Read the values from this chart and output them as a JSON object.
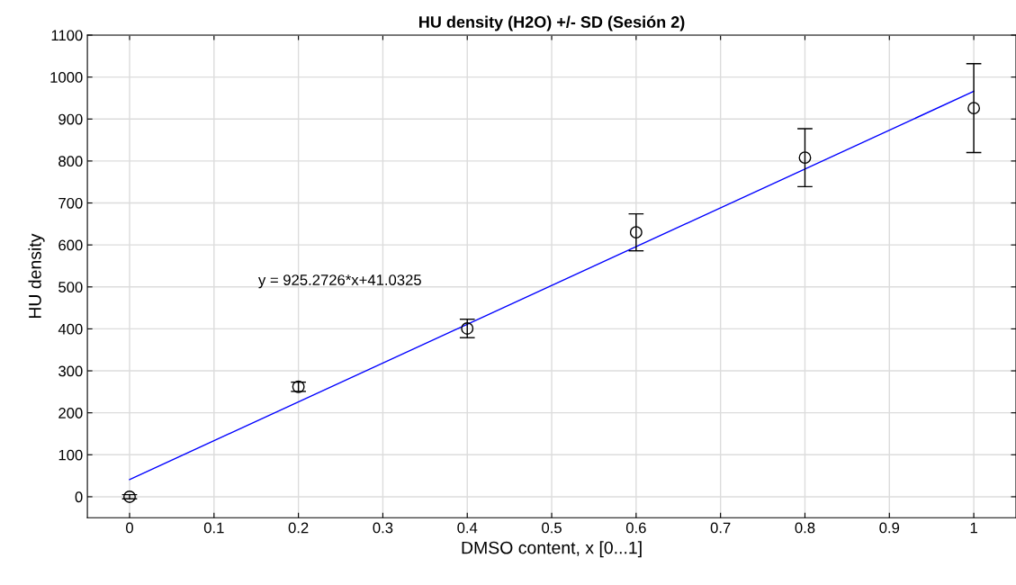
{
  "chart_data": {
    "type": "scatter",
    "title": "HU density (H2O) +/- SD (Sesión 2)",
    "xlabel": "DMSO content, x [0...1]",
    "ylabel": "HU density",
    "series": [
      {
        "color": "#000000",
        "marker": "circle",
        "x": [
          0,
          0.2,
          0.4,
          0.6,
          0.8,
          1
        ],
        "values": [
          0,
          262,
          401,
          630,
          808,
          926
        ],
        "errors": [
          5,
          11,
          22,
          44,
          69,
          106
        ]
      },
      {
        "type": "line",
        "color": "#0000ff",
        "marker": "none",
        "x": [
          0,
          1
        ],
        "values": [
          41,
          966
        ]
      }
    ],
    "annotations": [
      "y = 925.2726*x+41.0325"
    ],
    "xlim": [
      -0.05,
      1.05
    ],
    "xticks": [
      0,
      0.1,
      0.2,
      0.3,
      0.4,
      0.5,
      0.6,
      0.7,
      0.8,
      0.9,
      1
    ],
    "ylim": [
      -50,
      1100
    ],
    "yticks": [
      0,
      100,
      200,
      300,
      400,
      500,
      600,
      700,
      800,
      900,
      1000,
      1100
    ],
    "grid": true
  }
}
